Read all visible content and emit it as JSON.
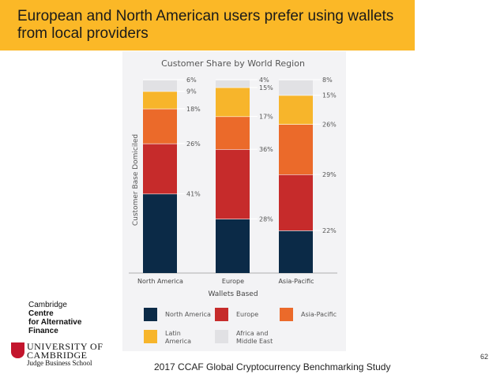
{
  "slide": {
    "title": "European and North American users prefer using wallets from local providers",
    "footer": "2017 CCAF Global Cryptocurrency Benchmarking Study",
    "page_number": "62"
  },
  "logos": {
    "ccaf": [
      "Cambridge",
      "Centre",
      "for Alternative",
      "Finance"
    ],
    "cambridge": [
      "UNIVERSITY OF",
      "CAMBRIDGE",
      "Judge Business School"
    ]
  },
  "colors": {
    "header": "#fbb827",
    "north_america": "#0b2a47",
    "europe": "#c62b2b",
    "asia_pacific": "#eb6a2a",
    "latin_america": "#f7b52b",
    "africa_middle_east": "#e1e1e4"
  },
  "chart_data": {
    "type": "bar",
    "stacked": true,
    "title": "Customer Share by World Region",
    "xlabel": "Wallets Based",
    "ylabel": "Customer Base Domiciled",
    "categories": [
      "North America",
      "Europe",
      "Asia-Pacific"
    ],
    "ylim": [
      0,
      100
    ],
    "value_suffix": "%",
    "series": [
      {
        "name": "North America",
        "color_key": "north_america",
        "values": [
          41,
          28,
          22
        ]
      },
      {
        "name": "Europe",
        "color_key": "europe",
        "values": [
          26,
          36,
          29
        ]
      },
      {
        "name": "Asia-Pacific",
        "color_key": "asia_pacific",
        "values": [
          18,
          17,
          26
        ]
      },
      {
        "name": "Latin America",
        "color_key": "latin_america",
        "values": [
          9,
          15,
          15
        ]
      },
      {
        "name": "Africa and Middle East",
        "color_key": "africa_middle_east",
        "values": [
          6,
          4,
          8
        ]
      }
    ],
    "legend": {
      "position": "bottom",
      "order": [
        "North America",
        "Europe",
        "Asia-Pacific",
        "Latin America",
        "Africa and Middle East"
      ],
      "labels": [
        [
          "North America"
        ],
        [
          "Europe"
        ],
        [
          "Asia-Pacific"
        ],
        [
          "Latin",
          "America"
        ],
        [
          "Africa and",
          "Middle East"
        ]
      ]
    }
  }
}
